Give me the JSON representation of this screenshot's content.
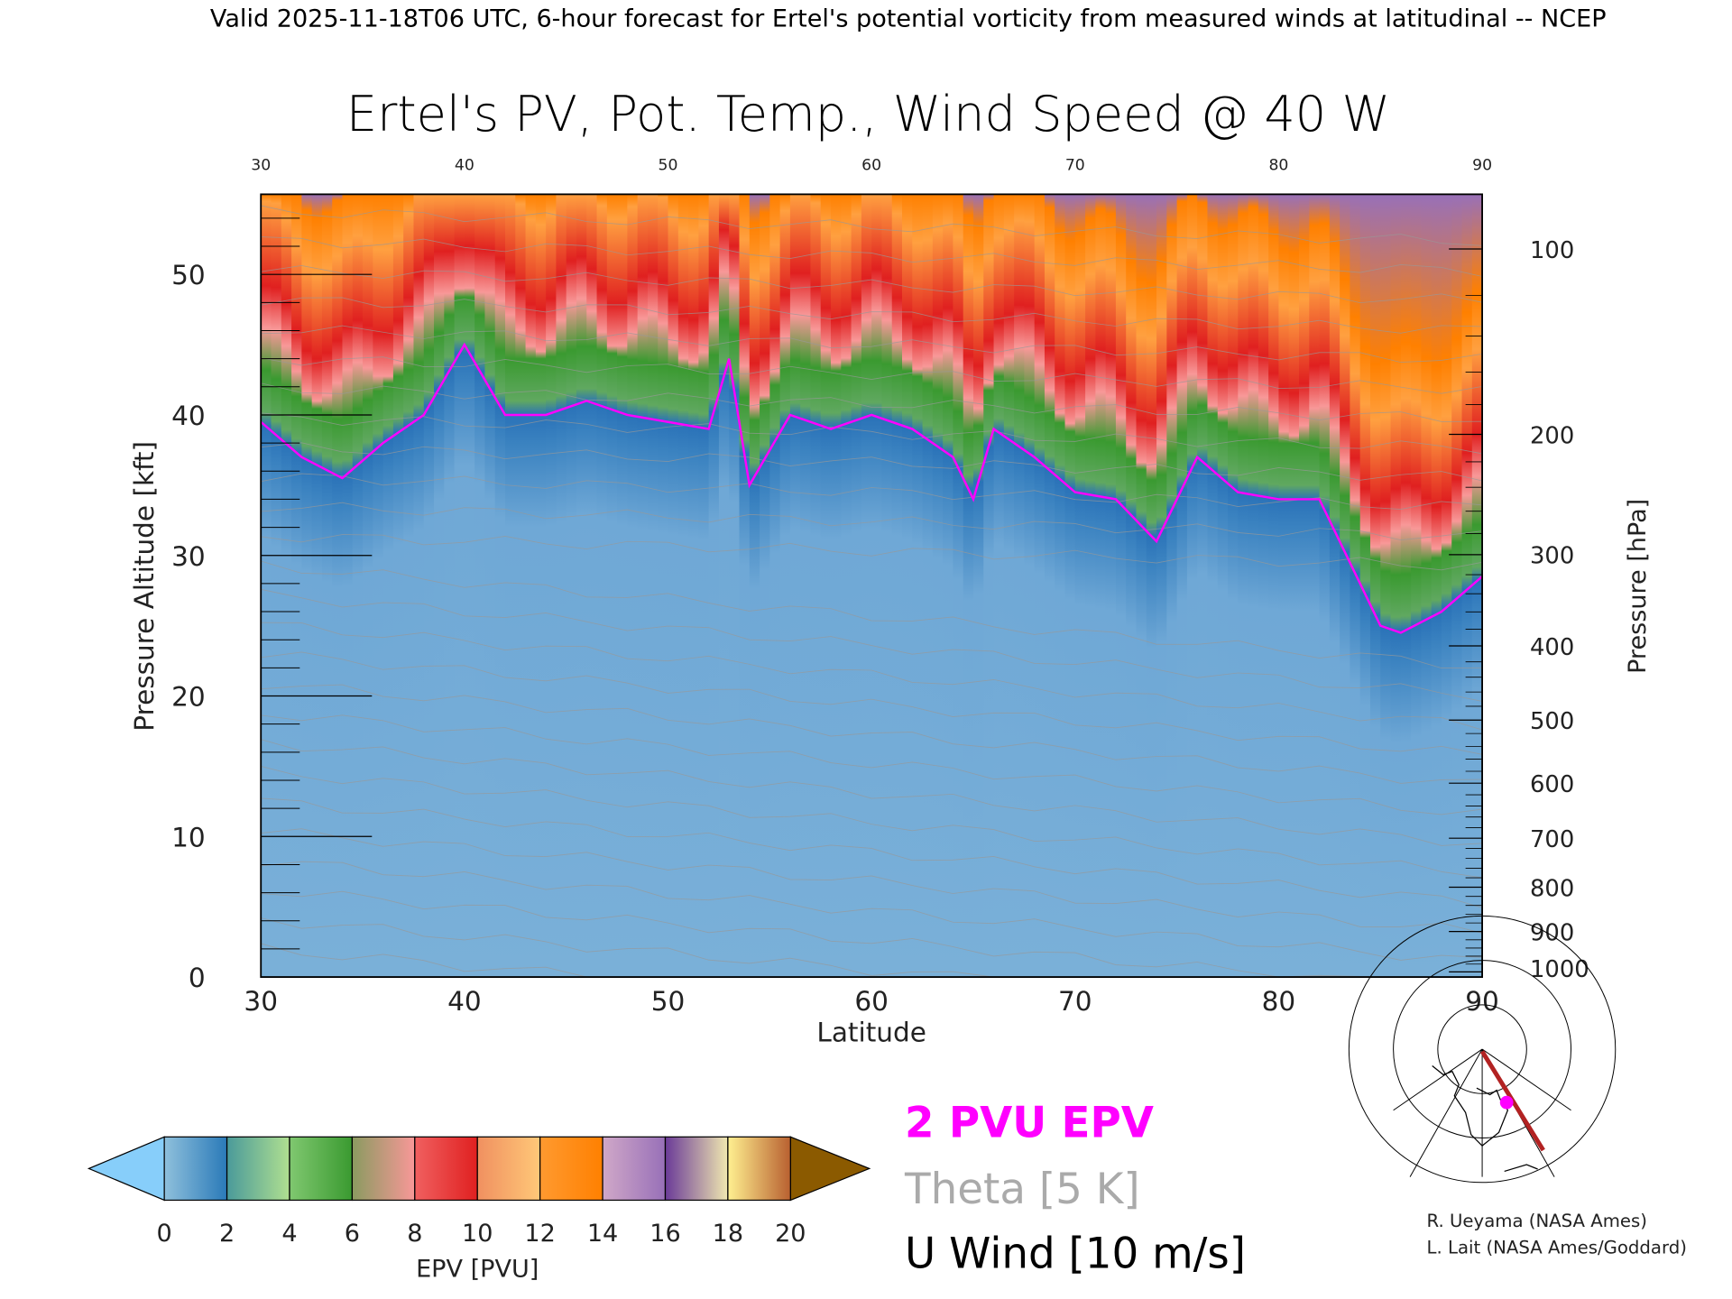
{
  "header": {
    "caption": "Valid 2025-11-18T06 UTC, 6-hour forecast for Ertel's potential vorticity from measured winds at latitudinal -- NCEP"
  },
  "chart_data": {
    "type": "heatmap",
    "title": "Ertel's PV, Pot. Temp., Wind Speed @ 40 W",
    "xlabel": "Latitude",
    "ylabel": "Pressure Altitude [kft]",
    "y2label": "Pressure [hPa]",
    "xlim": [
      30,
      90
    ],
    "ylim": [
      0,
      55.7
    ],
    "x_ticks": [
      "30",
      "40",
      "50",
      "60",
      "70",
      "80",
      "90"
    ],
    "x_tick_values": [
      30,
      40,
      50,
      60,
      70,
      80,
      90
    ],
    "y_ticks": [
      "0",
      "10",
      "20",
      "30",
      "40",
      "50"
    ],
    "y_tick_values": [
      0,
      10,
      20,
      30,
      40,
      50
    ],
    "y2_ticks": [
      "100",
      "200",
      "300",
      "400",
      "500",
      "600",
      "700",
      "800",
      "900",
      "1000"
    ],
    "y2_tick_values": [
      100,
      200,
      300,
      400,
      500,
      600,
      700,
      800,
      900,
      1000
    ],
    "tropopause_2pvu_kft": {
      "latitude": [
        30,
        32,
        34,
        36,
        38,
        40,
        42,
        44,
        46,
        48,
        50,
        52,
        53,
        54,
        56,
        58,
        60,
        62,
        64,
        65,
        66,
        68,
        70,
        72,
        74,
        76,
        78,
        80,
        82,
        84,
        85,
        86,
        88,
        90
      ],
      "altitude": [
        39.5,
        37,
        35.5,
        38,
        40,
        45,
        40,
        40,
        41,
        40,
        39.5,
        39,
        44,
        35,
        40,
        39,
        40,
        39,
        37,
        34,
        39,
        37,
        34.5,
        34,
        31,
        37,
        34.5,
        34,
        34,
        28,
        25,
        24.5,
        26,
        28.5
      ]
    },
    "colorbar": {
      "label": "EPV [PVU]",
      "ticks": [
        "0",
        "2",
        "4",
        "6",
        "8",
        "10",
        "12",
        "14",
        "16",
        "18",
        "20"
      ],
      "segments": [
        [
          "#8fc0dc",
          "#2a7ab8"
        ],
        [
          "#4a9a9a",
          "#b0e090"
        ],
        [
          "#80c870",
          "#3a9a30"
        ],
        [
          "#8a9a60",
          "#f89898"
        ],
        [
          "#f06060",
          "#e02020"
        ],
        [
          "#f09060",
          "#ffc878"
        ],
        [
          "#ff9a30",
          "#ff8000"
        ],
        [
          "#d0a8c8",
          "#9870b8"
        ],
        [
          "#6a3a98",
          "#f0e8b0"
        ],
        [
          "#fff090",
          "#b86030"
        ]
      ],
      "under_color": "#87cefa",
      "over_color": "#8b5a00"
    },
    "legend": [
      {
        "label": "2 PVU EPV",
        "color": "#ff00ff"
      },
      {
        "label": "Theta [5 K]",
        "color": "#aaaaaa"
      },
      {
        "label": "U Wind [10 m/s]",
        "color": "#000000"
      }
    ]
  },
  "credits": {
    "line1": "R. Ueyama (NASA Ames)",
    "line2": "L. Lait (NASA Ames/Goddard)"
  }
}
